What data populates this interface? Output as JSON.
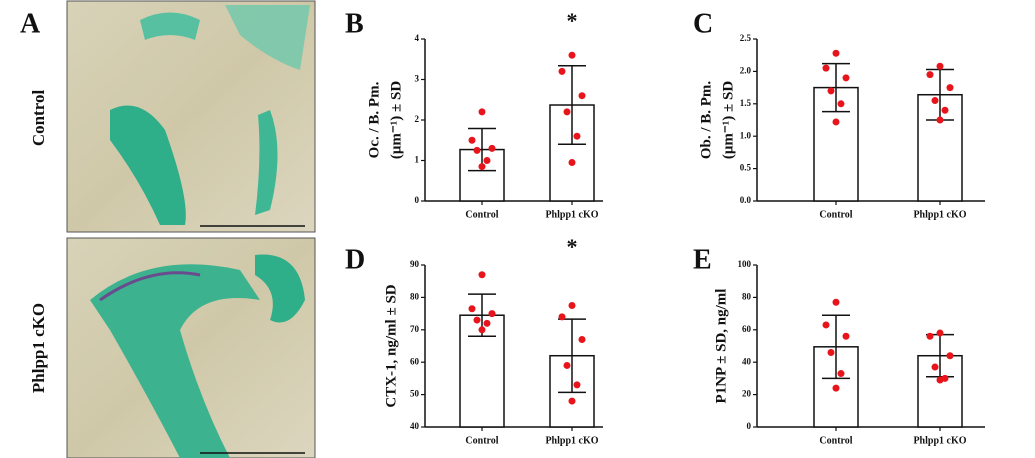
{
  "panel_a": {
    "label": "A",
    "rows": [
      "Control",
      "Phlpp1 cKO"
    ]
  },
  "chart_data": [
    {
      "type": "bar",
      "panel": "B",
      "ylabel": [
        "Oc. / B. Pm.",
        "(μm⁻¹) ± SD"
      ],
      "categories": [
        "Control",
        "Phlpp1 cKO"
      ],
      "values": [
        1.27,
        2.37
      ],
      "errors": [
        0.52,
        0.97
      ],
      "points": [
        [
          2.2,
          1.5,
          1.3,
          1.25,
          1.0,
          0.85
        ],
        [
          3.6,
          3.2,
          2.6,
          2.2,
          1.6,
          0.95
        ]
      ],
      "annotation": {
        "text": "*",
        "category": "Phlpp1 cKO"
      },
      "bar_color": "#ffffff",
      "point_color": "#e8141b",
      "ylim": [
        0,
        4
      ],
      "yticks": [
        0,
        1,
        2,
        3,
        4
      ]
    },
    {
      "type": "bar",
      "panel": "C",
      "ylabel": [
        "Ob. / B. Pm.",
        "(μm⁻¹) ± SD"
      ],
      "categories": [
        "Control",
        "Phlpp1 cKO"
      ],
      "values": [
        1.75,
        1.64
      ],
      "errors": [
        0.37,
        0.39
      ],
      "points": [
        [
          2.28,
          2.05,
          1.9,
          1.7,
          1.5,
          1.22
        ],
        [
          2.08,
          1.95,
          1.75,
          1.55,
          1.4,
          1.25
        ]
      ],
      "bar_color": "#ffffff",
      "point_color": "#e8141b",
      "ylim": [
        0,
        2.5
      ],
      "yticks": [
        {
          "value": 0,
          "label": "0.0"
        },
        0.5,
        {
          "value": 1,
          "label": "1.0"
        },
        1.5,
        {
          "value": 2,
          "label": "2.0"
        },
        2.5
      ]
    },
    {
      "type": "bar",
      "panel": "D",
      "ylabel": [
        "CTX-1, ng/ml ± SD"
      ],
      "categories": [
        "Control",
        "Phlpp1 cKO"
      ],
      "values": [
        74.5,
        62
      ],
      "errors": [
        6.5,
        11.3
      ],
      "points": [
        [
          87,
          76.5,
          75,
          73,
          72,
          70
        ],
        [
          77.5,
          74,
          67,
          59,
          53,
          48
        ]
      ],
      "annotation": {
        "text": "*",
        "category": "Phlpp1 cKO"
      },
      "bar_color": "#ffffff",
      "point_color": "#e8141b",
      "ylim": [
        40,
        90
      ],
      "yticks": [
        40,
        50,
        60,
        70,
        80,
        90
      ]
    },
    {
      "type": "bar",
      "panel": "E",
      "ylabel": [
        "P1NP ± SD, ng/ml"
      ],
      "categories": [
        "Control",
        "Phlpp1 cKO"
      ],
      "values": [
        49.5,
        44
      ],
      "errors": [
        19.5,
        13
      ],
      "points": [
        [
          77,
          63,
          56,
          46,
          33,
          24
        ],
        [
          58,
          56,
          44,
          37,
          30,
          29
        ]
      ],
      "bar_color": "#ffffff",
      "point_color": "#e8141b",
      "ylim": [
        0,
        100
      ],
      "yticks": [
        0,
        20,
        40,
        60,
        80,
        100
      ]
    }
  ]
}
